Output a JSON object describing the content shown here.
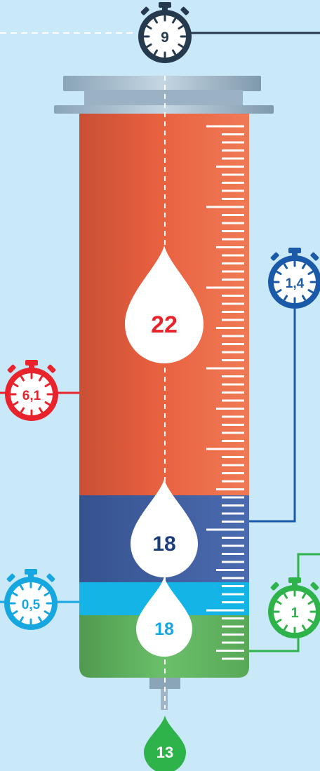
{
  "colors": {
    "background": "#c9e8f8",
    "top_timer": "#263a4d",
    "red": "#e8232c",
    "dark_blue": "#1a5aa8",
    "light_blue": "#17a7e0",
    "green": "#2db34a",
    "syringe_red": "#e05a3d",
    "syringe_dark_blue": "#3f5c9e",
    "syringe_light_blue": "#14b4e6",
    "syringe_green": "#5aa85a"
  },
  "timers": {
    "top": "9",
    "red": "6,1",
    "dark_blue": "1,4",
    "light_blue": "0,5",
    "green": "1"
  },
  "drops": {
    "red_section": "22",
    "dark_blue_section": "18",
    "light_blue_section": "18",
    "needle": "13"
  }
}
